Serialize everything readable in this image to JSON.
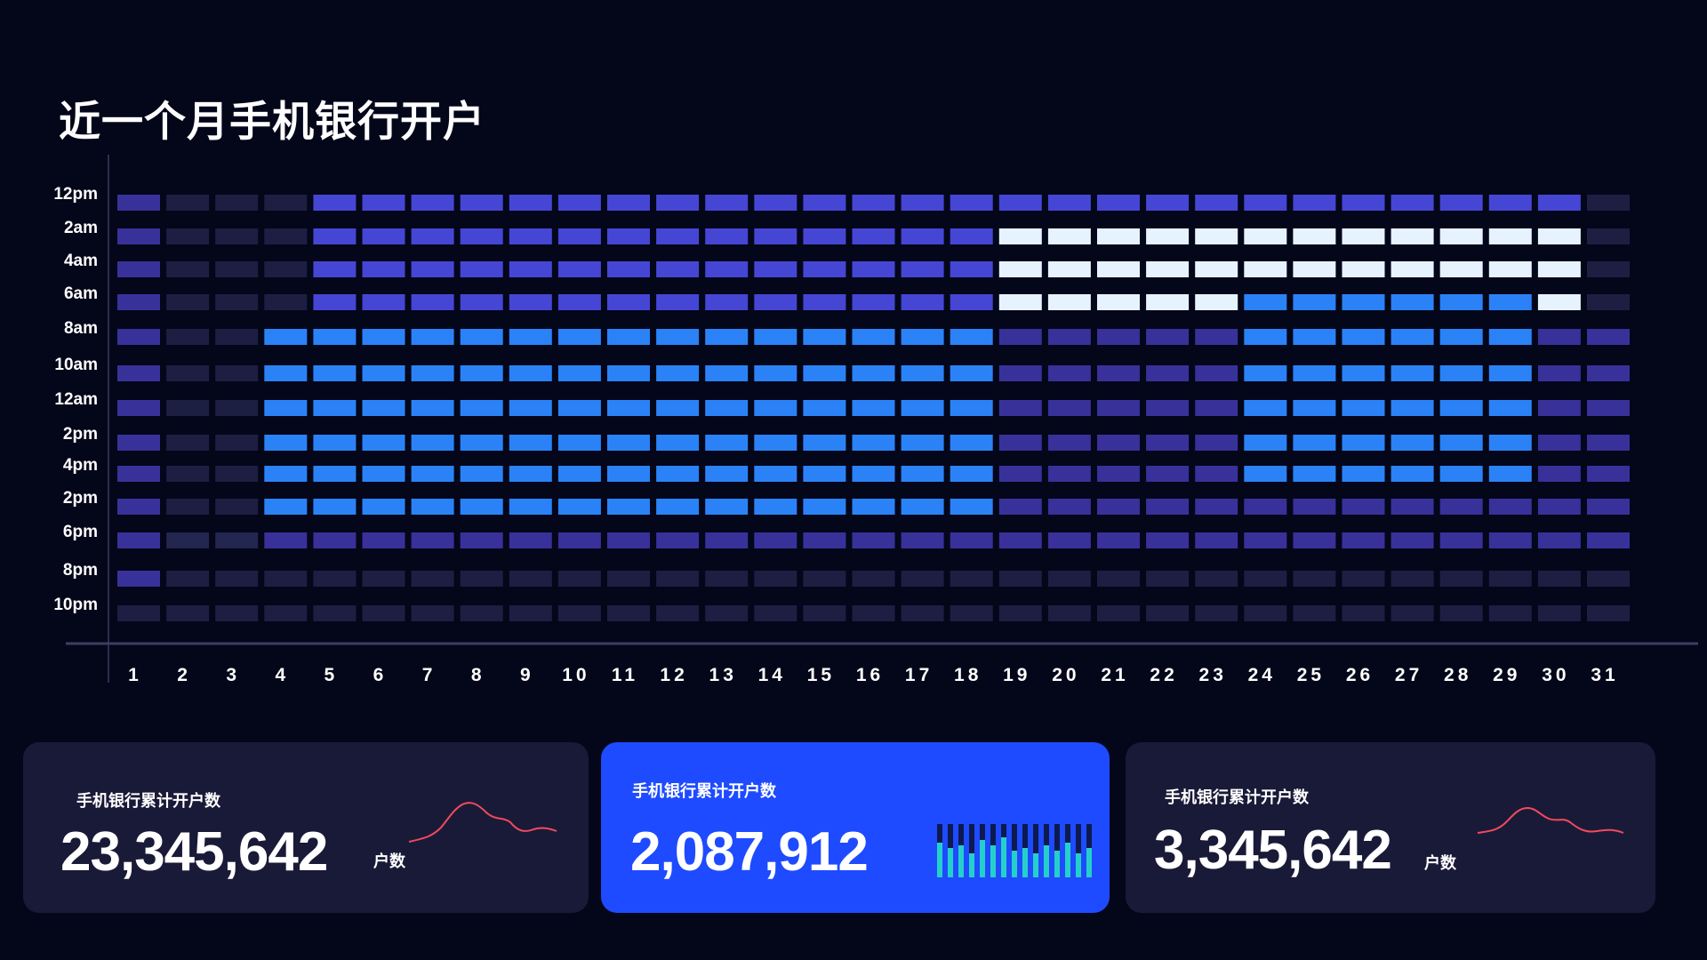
{
  "title": "近一个月手机银行开户",
  "chart_data": {
    "type": "heatmap",
    "title": "近一个月手机银行开户",
    "y_labels": [
      "12pm",
      "2am",
      "4am",
      "6am",
      "8am",
      "10am",
      "12am",
      "2pm",
      "4pm",
      "2pm",
      "6pm",
      "8pm",
      "10pm"
    ],
    "x_labels": [
      "1",
      "2",
      "3",
      "4",
      "5",
      "6",
      "7",
      "8",
      "9",
      "10",
      "11",
      "12",
      "13",
      "14",
      "15",
      "16",
      "17",
      "18",
      "19",
      "20",
      "21",
      "22",
      "23",
      "24",
      "25",
      "26",
      "27",
      "28",
      "29",
      "30",
      "31"
    ],
    "levels": [
      [
        2,
        0,
        0,
        0,
        3,
        3,
        3,
        3,
        3,
        3,
        3,
        3,
        3,
        3,
        3,
        3,
        3,
        3,
        3,
        3,
        3,
        3,
        3,
        3,
        3,
        3,
        3,
        3,
        3,
        3,
        0
      ],
      [
        2,
        0,
        0,
        0,
        3,
        3,
        3,
        3,
        3,
        3,
        3,
        3,
        3,
        3,
        3,
        3,
        3,
        3,
        5,
        5,
        5,
        5,
        5,
        5,
        5,
        5,
        5,
        5,
        5,
        5,
        0
      ],
      [
        2,
        0,
        0,
        0,
        3,
        3,
        3,
        3,
        3,
        3,
        3,
        3,
        3,
        3,
        3,
        3,
        3,
        3,
        5,
        5,
        5,
        5,
        5,
        5,
        5,
        5,
        5,
        5,
        5,
        5,
        0
      ],
      [
        2,
        0,
        0,
        0,
        3,
        3,
        3,
        3,
        3,
        3,
        3,
        3,
        3,
        3,
        3,
        3,
        3,
        3,
        5,
        5,
        5,
        5,
        5,
        4,
        4,
        4,
        4,
        4,
        4,
        5,
        0
      ],
      [
        2,
        0,
        0,
        4,
        4,
        4,
        4,
        4,
        4,
        4,
        4,
        4,
        4,
        4,
        4,
        4,
        4,
        4,
        2,
        2,
        2,
        2,
        2,
        4,
        4,
        4,
        4,
        4,
        4,
        2,
        2
      ],
      [
        2,
        0,
        0,
        4,
        4,
        4,
        4,
        4,
        4,
        4,
        4,
        4,
        4,
        4,
        4,
        4,
        4,
        4,
        2,
        2,
        2,
        2,
        2,
        4,
        4,
        4,
        4,
        4,
        4,
        2,
        2
      ],
      [
        2,
        0,
        0,
        4,
        4,
        4,
        4,
        4,
        4,
        4,
        4,
        4,
        4,
        4,
        4,
        4,
        4,
        4,
        2,
        2,
        2,
        2,
        2,
        4,
        4,
        4,
        4,
        4,
        4,
        2,
        2
      ],
      [
        2,
        0,
        0,
        4,
        4,
        4,
        4,
        4,
        4,
        4,
        4,
        4,
        4,
        4,
        4,
        4,
        4,
        4,
        2,
        2,
        2,
        2,
        2,
        4,
        4,
        4,
        4,
        4,
        4,
        2,
        2
      ],
      [
        2,
        0,
        0,
        4,
        4,
        4,
        4,
        4,
        4,
        4,
        4,
        4,
        4,
        4,
        4,
        4,
        4,
        4,
        2,
        2,
        2,
        2,
        2,
        4,
        4,
        4,
        4,
        4,
        4,
        2,
        2
      ],
      [
        2,
        0,
        0,
        4,
        4,
        4,
        4,
        4,
        4,
        4,
        4,
        4,
        4,
        4,
        4,
        4,
        4,
        4,
        2,
        2,
        2,
        2,
        2,
        2,
        2,
        2,
        2,
        2,
        2,
        2,
        2
      ],
      [
        2,
        1,
        1,
        2,
        2,
        2,
        2,
        2,
        2,
        2,
        2,
        2,
        2,
        2,
        2,
        2,
        2,
        2,
        2,
        2,
        2,
        2,
        2,
        2,
        2,
        2,
        2,
        2,
        2,
        2,
        2
      ],
      [
        2,
        0,
        0,
        0,
        0,
        0,
        0,
        0,
        0,
        0,
        0,
        0,
        0,
        0,
        0,
        0,
        0,
        0,
        0,
        0,
        0,
        0,
        0,
        0,
        0,
        0,
        0,
        0,
        0,
        0,
        0
      ],
      [
        0,
        0,
        0,
        0,
        0,
        0,
        0,
        0,
        0,
        0,
        0,
        0,
        0,
        0,
        0,
        0,
        0,
        0,
        0,
        0,
        0,
        0,
        0,
        0,
        0,
        0,
        0,
        0,
        0,
        0,
        0
      ]
    ],
    "palette": [
      "#1c1f42",
      "#23264f",
      "#38319a",
      "#4546d4",
      "#2b82f7",
      "#e6f3ff"
    ]
  },
  "cards": [
    {
      "label": "手机银行累计开户数",
      "value": "23,345,642",
      "unit": "户数",
      "spark_color": "#f24a5d"
    },
    {
      "label": "手机银行累计开户数",
      "value": "2,087,912",
      "bar_colors": {
        "bg": "#0c1a4f",
        "fill": "#25d0c9"
      },
      "bars": [
        0.65,
        0.55,
        0.6,
        0.45,
        0.7,
        0.6,
        0.75,
        0.5,
        0.55,
        0.45,
        0.6,
        0.5,
        0.65,
        0.45,
        0.55,
        0.55,
        0.4,
        0.5
      ]
    },
    {
      "label": "手机银行累计开户数",
      "value": "3,345,642",
      "unit": "户数",
      "spark_color": "#f24a5d"
    }
  ]
}
